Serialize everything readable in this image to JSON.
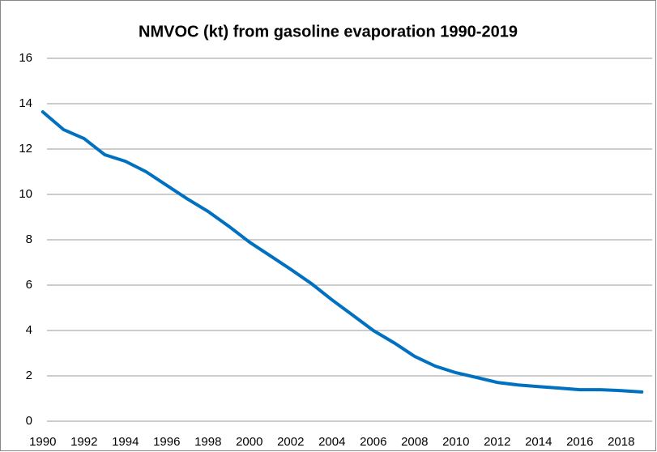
{
  "chart_data": {
    "type": "line",
    "title": "NMVOC (kt) from gasoline evaporation 1990-2019",
    "categories": [
      "1990",
      null,
      "1992",
      null,
      "1994",
      null,
      "1996",
      null,
      "1998",
      null,
      "2000",
      null,
      "2002",
      null,
      "2004",
      null,
      "2006",
      null,
      "2008",
      null,
      "2010",
      null,
      "2012",
      null,
      "2014",
      null,
      "2016",
      null,
      "2018",
      null
    ],
    "series": [
      {
        "name": "NMVOC",
        "color": "#0070c0",
        "values": [
          13.64,
          12.86,
          12.46,
          11.75,
          11.46,
          11.0,
          10.4,
          9.8,
          9.25,
          8.6,
          7.9,
          7.3,
          6.7,
          6.07,
          5.35,
          4.68,
          4.0,
          3.46,
          2.86,
          2.43,
          2.14,
          1.93,
          1.71,
          1.6,
          1.53,
          1.46,
          1.39,
          1.39,
          1.35,
          1.29
        ]
      }
    ],
    "ylim": [
      0,
      16
    ],
    "yticks": [
      0,
      2,
      4,
      6,
      8,
      10,
      12,
      14,
      16
    ],
    "grid": true
  }
}
